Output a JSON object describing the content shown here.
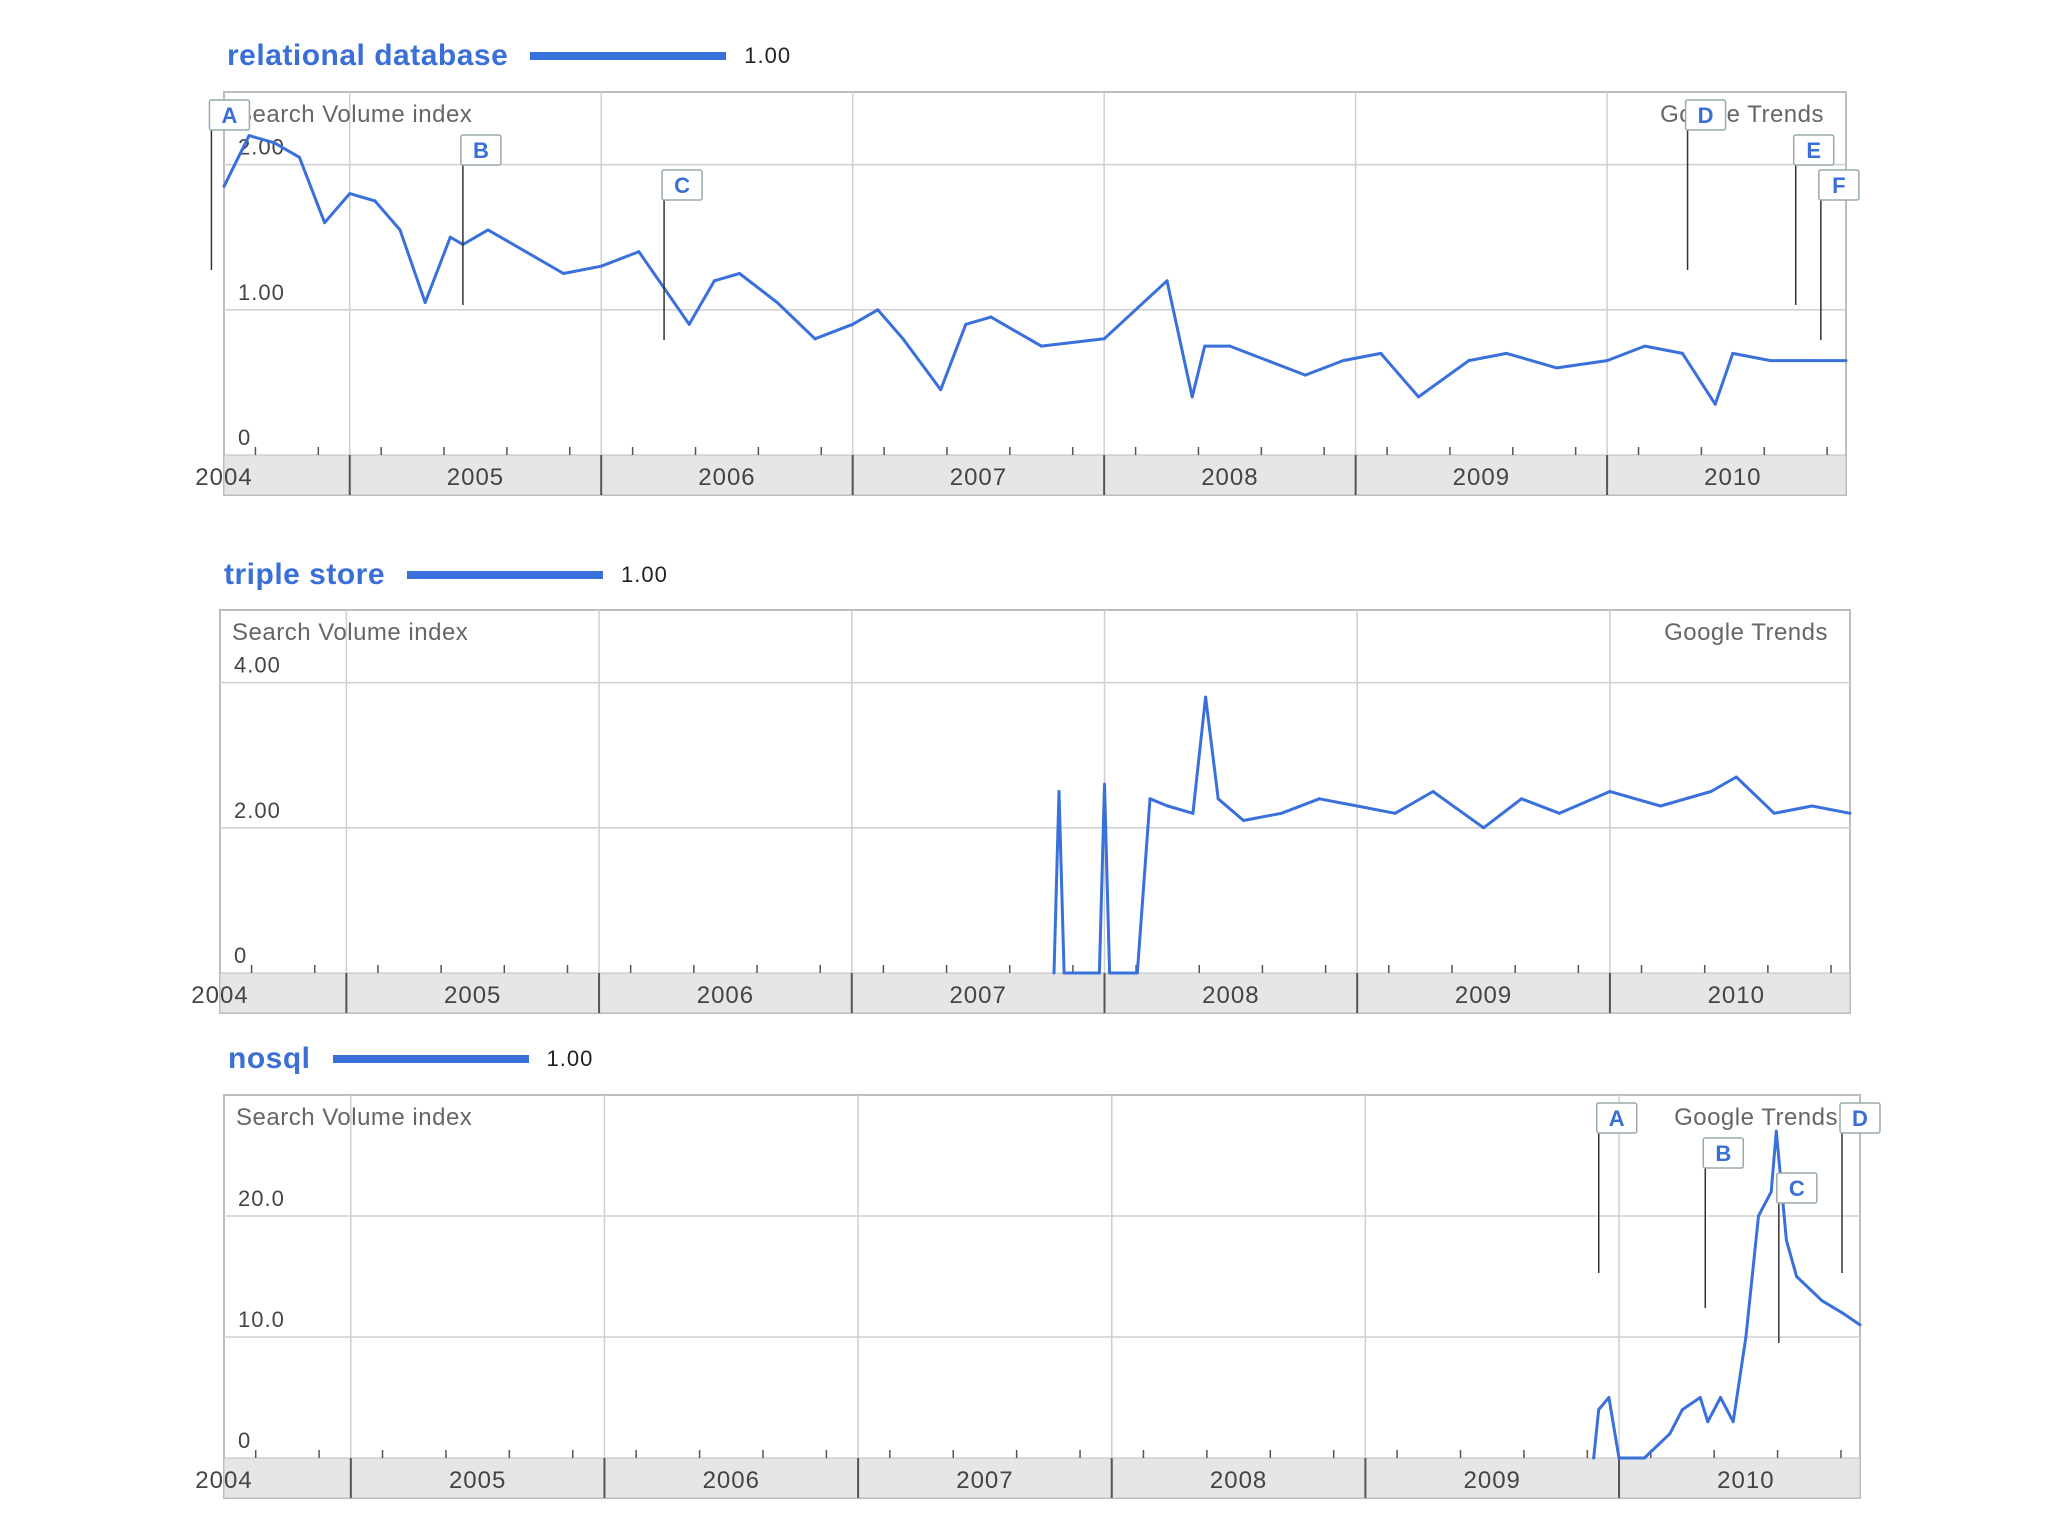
{
  "colors": {
    "series": "#3a70dc",
    "grid": "#cfcfcf",
    "axis_band": "#e6e6e6",
    "frame": "#bdbdbd"
  },
  "chart_data": [
    {
      "type": "line",
      "term": "relational database",
      "scale_label": "1.00",
      "ylabel": "Search Volume index",
      "source_label": "Google Trends",
      "x_ticks": [
        "2004",
        "2005",
        "2006",
        "2007",
        "2008",
        "2009",
        "2010"
      ],
      "y_ticks": [
        "0",
        "1.00",
        "2.00"
      ],
      "y_tick_values": [
        0,
        1,
        2
      ],
      "ylim": [
        0,
        2.5
      ],
      "xlim": [
        2004.0,
        2010.45
      ],
      "grid": true,
      "x": [
        2004.0,
        2004.1,
        2004.2,
        2004.3,
        2004.4,
        2004.5,
        2004.6,
        2004.7,
        2004.8,
        2004.9,
        2004.95,
        2005.05,
        2005.2,
        2005.35,
        2005.5,
        2005.65,
        2005.85,
        2005.95,
        2006.05,
        2006.2,
        2006.35,
        2006.5,
        2006.6,
        2006.7,
        2006.85,
        2006.95,
        2007.05,
        2007.25,
        2007.5,
        2007.75,
        2007.85,
        2007.9,
        2008.0,
        2008.15,
        2008.3,
        2008.45,
        2008.6,
        2008.75,
        2008.95,
        2009.1,
        2009.3,
        2009.5,
        2009.65,
        2009.8,
        2009.93,
        2010.0,
        2010.15,
        2010.3,
        2010.45
      ],
      "values": [
        1.85,
        2.2,
        2.15,
        2.05,
        1.6,
        1.8,
        1.75,
        1.55,
        1.05,
        1.5,
        1.45,
        1.55,
        1.4,
        1.25,
        1.3,
        1.4,
        0.9,
        1.2,
        1.25,
        1.05,
        0.8,
        0.9,
        1.0,
        0.8,
        0.45,
        0.9,
        0.95,
        0.75,
        0.8,
        1.2,
        0.4,
        0.75,
        0.75,
        0.65,
        0.55,
        0.65,
        0.7,
        0.4,
        0.65,
        0.7,
        0.6,
        0.65,
        0.75,
        0.7,
        0.35,
        0.7,
        0.65,
        0.65,
        0.65
      ],
      "annotations": [
        {
          "label": "A",
          "x": 2003.95
        },
        {
          "label": "B",
          "x": 2004.95
        },
        {
          "label": "C",
          "x": 2005.75
        },
        {
          "label": "D",
          "x": 2009.82
        },
        {
          "label": "E",
          "x": 2010.25
        },
        {
          "label": "F",
          "x": 2010.35
        }
      ]
    },
    {
      "type": "line",
      "term": "triple store",
      "scale_label": "1.00",
      "ylabel": "Search Volume index",
      "source_label": "Google Trends",
      "x_ticks": [
        "2004",
        "2005",
        "2006",
        "2007",
        "2008",
        "2009",
        "2010"
      ],
      "y_ticks": [
        "0",
        "2.00",
        "4.00"
      ],
      "y_tick_values": [
        0,
        2,
        4
      ],
      "ylim": [
        0,
        5
      ],
      "xlim": [
        2004.0,
        2010.45
      ],
      "grid": true,
      "x": [
        2007.3,
        2007.32,
        2007.34,
        2007.48,
        2007.5,
        2007.52,
        2007.63,
        2007.68,
        2007.75,
        2007.85,
        2007.9,
        2007.95,
        2008.05,
        2008.2,
        2008.35,
        2008.5,
        2008.65,
        2008.8,
        2009.0,
        2009.15,
        2009.3,
        2009.5,
        2009.7,
        2009.9,
        2010.0,
        2010.15,
        2010.3,
        2010.45
      ],
      "values": [
        0,
        2.5,
        0,
        0,
        2.6,
        0,
        0,
        2.4,
        2.3,
        2.2,
        3.8,
        2.4,
        2.1,
        2.2,
        2.4,
        2.3,
        2.2,
        2.5,
        2.0,
        2.4,
        2.2,
        2.5,
        2.3,
        2.5,
        2.7,
        2.2,
        2.3,
        2.2
      ],
      "annotations": []
    },
    {
      "type": "line",
      "term": "nosql",
      "scale_label": "1.00",
      "ylabel": "Search Volume index",
      "source_label": "Google Trends",
      "x_ticks": [
        "2004",
        "2005",
        "2006",
        "2007",
        "2008",
        "2009",
        "2010"
      ],
      "y_ticks": [
        "0",
        "10.0",
        "20.0"
      ],
      "y_tick_values": [
        0,
        10,
        20
      ],
      "ylim": [
        0,
        30
      ],
      "xlim": [
        2004.0,
        2010.45
      ],
      "grid": true,
      "x": [
        2009.4,
        2009.42,
        2009.46,
        2009.5,
        2009.6,
        2009.7,
        2009.75,
        2009.82,
        2009.85,
        2009.9,
        2009.95,
        2010.0,
        2010.05,
        2010.1,
        2010.12,
        2010.16,
        2010.2,
        2010.3,
        2010.38,
        2010.45
      ],
      "values": [
        0,
        4,
        5,
        0,
        0,
        2,
        4,
        5,
        3,
        5,
        3,
        10,
        20,
        22,
        27,
        18,
        15,
        13,
        12,
        11
      ],
      "annotations": [
        {
          "label": "A",
          "x": 2009.42
        },
        {
          "label": "B",
          "x": 2009.84
        },
        {
          "label": "C",
          "x": 2010.13
        },
        {
          "label": "D",
          "x": 2010.42
        }
      ]
    }
  ]
}
